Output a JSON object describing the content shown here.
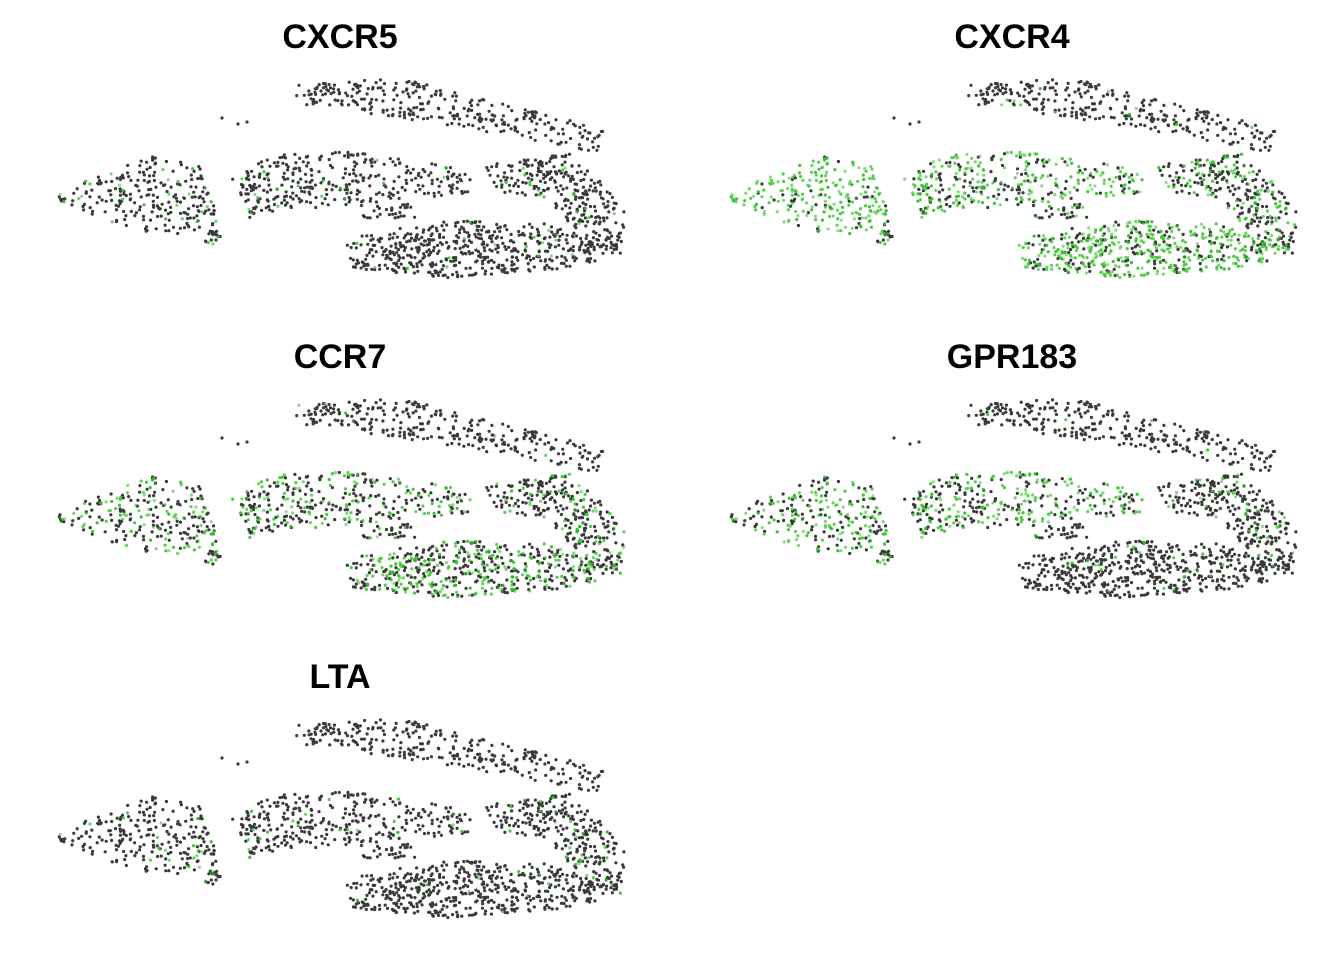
{
  "chart_data": [
    {
      "type": "scatter",
      "title": "CXCR5",
      "xlabel": "",
      "ylabel": "",
      "grid": false,
      "axes_visible": false,
      "colors": {
        "low": "#3a3a3a",
        "high": "#36c22c"
      },
      "expression_fraction_by_cluster": {
        "top": 0.0,
        "left": 0.12,
        "middle": 0.06,
        "right": 0.04,
        "islet": 0.0,
        "bottom": 0.02,
        "tail": 0.1
      }
    },
    {
      "type": "scatter",
      "title": "CXCR4",
      "xlabel": "",
      "ylabel": "",
      "grid": false,
      "axes_visible": false,
      "colors": {
        "low": "#3a3a3a",
        "high": "#36c22c"
      },
      "expression_fraction_by_cluster": {
        "top": 0.03,
        "left": 0.85,
        "middle": 0.65,
        "right": 0.35,
        "islet": 0.3,
        "bottom": 0.7,
        "tail": 0.3
      }
    },
    {
      "type": "scatter",
      "title": "CCR7",
      "xlabel": "",
      "ylabel": "",
      "grid": false,
      "axes_visible": false,
      "colors": {
        "low": "#3a3a3a",
        "high": "#36c22c"
      },
      "expression_fraction_by_cluster": {
        "top": 0.02,
        "left": 0.35,
        "middle": 0.35,
        "right": 0.25,
        "islet": 0.15,
        "bottom": 0.45,
        "tail": 0.25
      }
    },
    {
      "type": "scatter",
      "title": "GPR183",
      "xlabel": "",
      "ylabel": "",
      "grid": false,
      "axes_visible": false,
      "colors": {
        "low": "#3a3a3a",
        "high": "#36c22c"
      },
      "expression_fraction_by_cluster": {
        "top": 0.02,
        "left": 0.6,
        "middle": 0.5,
        "right": 0.12,
        "islet": 0.05,
        "bottom": 0.03,
        "tail": 0.25
      }
    },
    {
      "type": "scatter",
      "title": "LTA",
      "xlabel": "",
      "ylabel": "",
      "grid": false,
      "axes_visible": false,
      "colors": {
        "low": "#3a3a3a",
        "high": "#36c22c"
      },
      "expression_fraction_by_cluster": {
        "top": 0.0,
        "left": 0.08,
        "middle": 0.08,
        "right": 0.1,
        "islet": 0.0,
        "bottom": 0.03,
        "tail": 0.05
      }
    }
  ]
}
